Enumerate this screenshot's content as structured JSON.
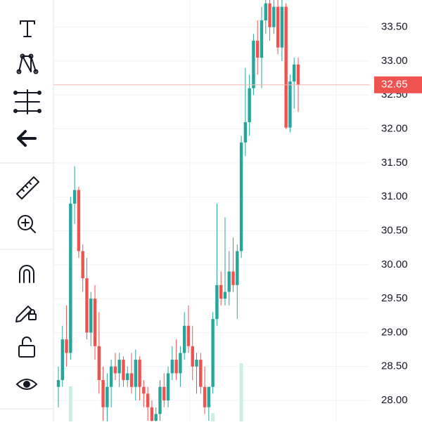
{
  "chart_data": {
    "type": "candlestick",
    "open": [
      28.2,
      28.3,
      28.9,
      28.7,
      30.9,
      31.1,
      30.2,
      29.8,
      29.0,
      29.5,
      28.8,
      28.3,
      27.9,
      28.2,
      28.5,
      28.4,
      28.6,
      28.3,
      28.4,
      28.2,
      28.6,
      28.2,
      28.1,
      27.9,
      27.7,
      27.8,
      28.2,
      28.0,
      28.4,
      28.6,
      28.4,
      28.7,
      29.1,
      28.8,
      28.5,
      28.6,
      28.2,
      27.9,
      28.2,
      29.2,
      29.7,
      29.5,
      29.6,
      29.9,
      29.7,
      30.2,
      31.8,
      32.1,
      32.6,
      33.3,
      33.05,
      33.6,
      33.85,
      33.5,
      33.8,
      33.2,
      33.8,
      32.02,
      32.7,
      32.95
    ],
    "high": [
      28.5,
      29.1,
      29.4,
      31.0,
      31.45,
      31.15,
      30.3,
      30.1,
      29.6,
      29.7,
      29.3,
      28.5,
      28.4,
      28.6,
      28.7,
      28.7,
      28.65,
      28.5,
      28.7,
      28.75,
      28.65,
      28.3,
      28.2,
      28.0,
      27.9,
      28.3,
      28.4,
      28.5,
      28.8,
      28.9,
      28.8,
      29.3,
      29.4,
      29.1,
      28.7,
      28.7,
      28.5,
      28.2,
      29.3,
      30.9,
      29.9,
      30.7,
      30.2,
      30.4,
      30.3,
      31.9,
      32.9,
      32.8,
      33.4,
      33.6,
      33.8,
      33.95,
      33.95,
      33.9,
      33.95,
      33.9,
      33.85,
      32.8,
      33.05,
      33.05
    ],
    "low": [
      27.9,
      28.2,
      28.5,
      28.6,
      30.6,
      30.1,
      29.6,
      28.9,
      28.8,
      28.6,
      28.1,
      27.7,
      27.6,
      27.9,
      28.3,
      28.2,
      28.2,
      28.2,
      28.1,
      28.0,
      28.0,
      27.9,
      27.7,
      27.6,
      27.5,
      27.7,
      27.9,
      27.9,
      28.3,
      28.3,
      28.2,
      28.6,
      28.7,
      28.3,
      28.1,
      28.1,
      27.8,
      27.7,
      28.1,
      29.1,
      29.4,
      29.4,
      29.4,
      29.6,
      29.2,
      30.1,
      31.6,
      31.9,
      32.5,
      32.8,
      32.6,
      33.4,
      33.3,
      33.4,
      33.1,
      33.0,
      32.0,
      31.95,
      32.3,
      32.25
    ],
    "close": [
      28.3,
      28.9,
      28.7,
      30.9,
      31.1,
      30.2,
      29.8,
      29.0,
      29.5,
      28.8,
      28.3,
      27.9,
      28.2,
      28.5,
      28.4,
      28.6,
      28.3,
      28.4,
      28.2,
      28.6,
      28.2,
      28.1,
      27.9,
      27.7,
      27.8,
      28.2,
      28.0,
      28.4,
      28.6,
      28.4,
      28.7,
      29.1,
      28.8,
      28.5,
      28.6,
      28.2,
      27.9,
      28.2,
      29.2,
      29.7,
      29.5,
      29.6,
      29.9,
      29.7,
      30.2,
      31.8,
      32.1,
      32.6,
      33.3,
      33.05,
      33.6,
      33.85,
      33.5,
      33.8,
      33.2,
      33.8,
      32.02,
      32.7,
      32.95,
      32.65
    ],
    "volume": [
      null,
      null,
      null,
      50,
      null,
      null,
      null,
      null,
      null,
      null,
      null,
      null,
      null,
      null,
      null,
      null,
      null,
      null,
      null,
      null,
      null,
      null,
      null,
      null,
      null,
      null,
      null,
      null,
      null,
      null,
      null,
      null,
      null,
      null,
      null,
      null,
      null,
      null,
      12,
      null,
      null,
      null,
      null,
      null,
      null,
      83,
      null,
      null,
      null,
      null,
      null,
      null,
      null,
      null,
      null,
      null,
      null,
      null,
      null,
      null
    ],
    "up_color": "#26a69a",
    "down_color": "#ef5350",
    "volume_color": "#cdeee3",
    "ylim": [
      27.69,
      33.9
    ],
    "yticks": [
      {
        "value": 28,
        "label": "28.00"
      },
      {
        "value": 28.5,
        "label": "28.50"
      },
      {
        "value": 29,
        "label": "29.00"
      },
      {
        "value": 29.5,
        "label": "29.50"
      },
      {
        "value": 30,
        "label": "30.00"
      },
      {
        "value": 30.5,
        "label": "30.50"
      },
      {
        "value": 31,
        "label": "31.00"
      },
      {
        "value": 31.5,
        "label": "31.50"
      },
      {
        "value": 32,
        "label": "32.00"
      },
      {
        "value": 32.5,
        "label": "32.50"
      },
      {
        "value": 33,
        "label": "33.00"
      },
      {
        "value": 33.5,
        "label": "33.50"
      }
    ],
    "last_price": {
      "value": 32.65,
      "label": "32.65"
    },
    "grid": true
  }
}
